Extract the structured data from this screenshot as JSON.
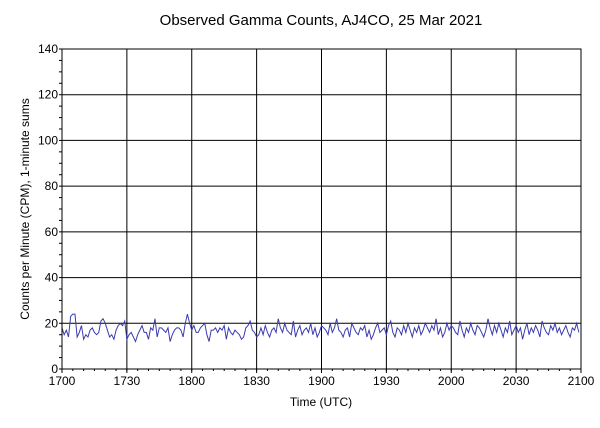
{
  "chart_data": {
    "type": "line",
    "title": "Observed Gamma Counts, AJ4CO, 25 Mar 2021",
    "xlabel": "Time (UTC)",
    "ylabel": "Counts per Minute (CPM), 1-minute sums",
    "x_ticks": [
      "1700",
      "1730",
      "1800",
      "1830",
      "1900",
      "1930",
      "2000",
      "2030",
      "2100"
    ],
    "y_ticks": [
      0,
      20,
      40,
      60,
      80,
      100,
      120,
      140
    ],
    "xlim_minutes": [
      0,
      240
    ],
    "ylim": [
      0,
      140
    ],
    "grid": true,
    "series_color": "#3b3bb0",
    "series": [
      {
        "x_start": "1700",
        "x_step_minutes": 1,
        "values": [
          18,
          15,
          17,
          14,
          23,
          24,
          24,
          14,
          16,
          19,
          13,
          15,
          14,
          17,
          18,
          16,
          15,
          16,
          21,
          22,
          20,
          17,
          14,
          15,
          13,
          17,
          19,
          20,
          19,
          21,
          13,
          15,
          16,
          14,
          12,
          15,
          17,
          19,
          16,
          16,
          13,
          18,
          17,
          22,
          14,
          18,
          18,
          17,
          16,
          18,
          12,
          15,
          17,
          18,
          18,
          17,
          14,
          20,
          24,
          20,
          17,
          19,
          16,
          16,
          18,
          19,
          20,
          15,
          12,
          17,
          17,
          18,
          16,
          18,
          17,
          19,
          13,
          18,
          16,
          15,
          17,
          16,
          15,
          13,
          14,
          18,
          19,
          21,
          17,
          16,
          14,
          15,
          18,
          15,
          19,
          16,
          14,
          17,
          18,
          16,
          22,
          18,
          16,
          20,
          17,
          16,
          15,
          21,
          14,
          17,
          19,
          15,
          17,
          18,
          16,
          20,
          15,
          18,
          14,
          16,
          19,
          18,
          17,
          15,
          20,
          16,
          18,
          22,
          17,
          16,
          14,
          17,
          18,
          14,
          20,
          18,
          16,
          15,
          18,
          17,
          19,
          14,
          17,
          13,
          15,
          18,
          20,
          16,
          17,
          18,
          15,
          19,
          21,
          16,
          14,
          18,
          17,
          15,
          19,
          16,
          20,
          17,
          14,
          18,
          16,
          19,
          15,
          17,
          20,
          18,
          16,
          19,
          17,
          22,
          15,
          18,
          14,
          16,
          20,
          17,
          19,
          18,
          16,
          15,
          21,
          17,
          14,
          18,
          16,
          20,
          17,
          15,
          19,
          18,
          16,
          14,
          17,
          22,
          18,
          15,
          19,
          16,
          20,
          17,
          14,
          18,
          16,
          21,
          15,
          17,
          19,
          16,
          18,
          13,
          17,
          20,
          15,
          18,
          16,
          19,
          17,
          14,
          21,
          18,
          16,
          15,
          19,
          17,
          20,
          16,
          18,
          15,
          17,
          19,
          16,
          14,
          18,
          17,
          20,
          16
        ]
      }
    ]
  }
}
